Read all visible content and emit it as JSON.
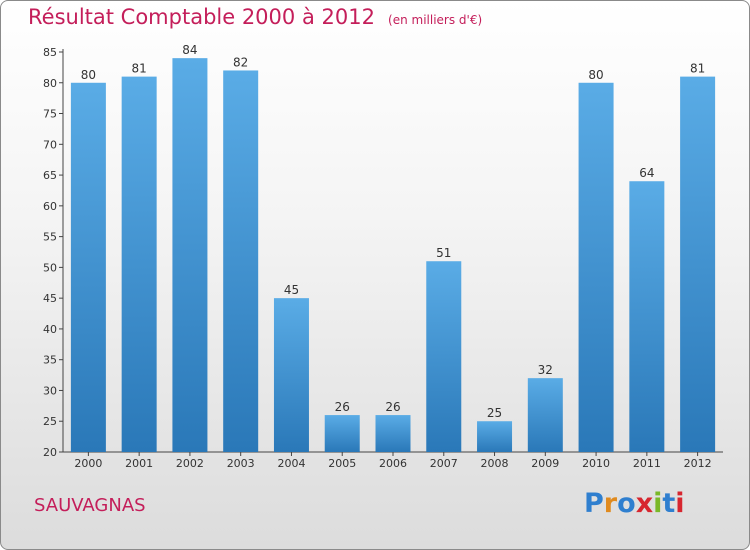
{
  "title": "Résultat Comptable 2000 à 2012",
  "subtitle": "(en milliers d'€)",
  "place": "SAUVAGNAS",
  "logo": {
    "letters": [
      "P",
      "r",
      "o",
      "x",
      "i",
      "t",
      "i"
    ],
    "colors": [
      "#2f7fcf",
      "#e08a1e",
      "#2f7fcf",
      "#d7262f",
      "#7ab828",
      "#2f7fcf",
      "#d7262f"
    ]
  },
  "colors": {
    "bar_top": "#5aace6",
    "bar_bottom": "#2a78b8",
    "title": "#c41e5a",
    "axis": "#444444"
  },
  "chart_data": {
    "type": "bar",
    "categories": [
      "2000",
      "2001",
      "2002",
      "2003",
      "2004",
      "2005",
      "2006",
      "2007",
      "2008",
      "2009",
      "2010",
      "2011",
      "2012"
    ],
    "values": [
      80,
      81,
      84,
      82,
      45,
      26,
      26,
      51,
      25,
      32,
      80,
      64,
      81
    ],
    "ylim": [
      20,
      85
    ],
    "yticks": [
      20,
      25,
      30,
      35,
      40,
      45,
      50,
      55,
      60,
      65,
      70,
      75,
      80,
      85
    ],
    "grid": false,
    "legend": "none"
  }
}
